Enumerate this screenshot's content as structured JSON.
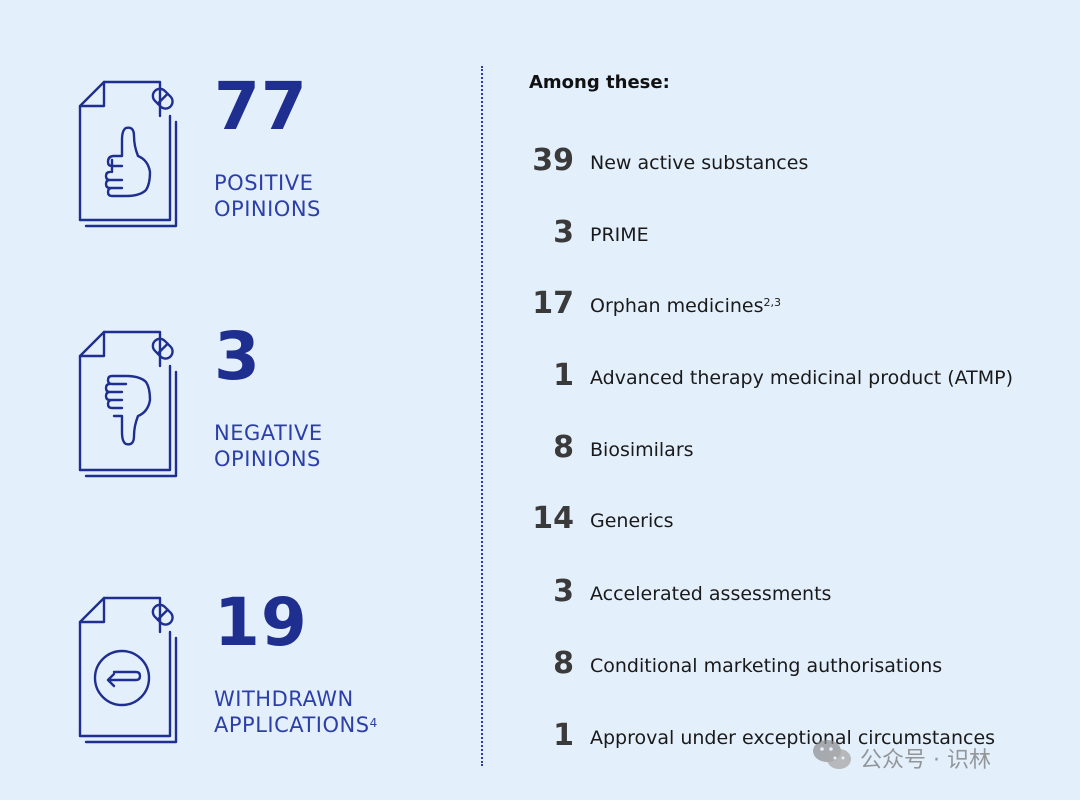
{
  "left_stats": [
    {
      "icon": "thumbs-up-document-icon",
      "number": "77",
      "label_line1": "POSITIVE",
      "label_line2": "OPINIONS",
      "sup": ""
    },
    {
      "icon": "thumbs-down-document-icon",
      "number": "3",
      "label_line1": "NEGATIVE",
      "label_line2": "OPINIONS",
      "sup": ""
    },
    {
      "icon": "withdraw-arrow-document-icon",
      "number": "19",
      "label_line1": "WITHDRAWN",
      "label_line2": "APPLICATIONS",
      "sup": "4"
    }
  ],
  "right_panel": {
    "heading": "Among these:",
    "items": [
      {
        "number": "39",
        "text": "New active substances",
        "sup": ""
      },
      {
        "number": "3",
        "text": "PRIME",
        "sup": ""
      },
      {
        "number": "17",
        "text": "Orphan medicines",
        "sup": "2,3"
      },
      {
        "number": "1",
        "text": "Advanced therapy medicinal product (ATMP)",
        "sup": ""
      },
      {
        "number": "8",
        "text": "Biosimilars",
        "sup": ""
      },
      {
        "number": "14",
        "text": "Generics",
        "sup": ""
      },
      {
        "number": "3",
        "text": "Accelerated assessments",
        "sup": ""
      },
      {
        "number": "8",
        "text": "Conditional marketing authorisations",
        "sup": ""
      },
      {
        "number": "1",
        "text": "Approval under exceptional circumstances",
        "sup": ""
      }
    ]
  },
  "watermark": {
    "text": "公众号 · 识林",
    "icon": "wechat-icon"
  },
  "colors": {
    "background": "#e4effc",
    "accent": "#1f2f8f",
    "label": "#2c3fa8",
    "text": "#1a1a1a"
  }
}
